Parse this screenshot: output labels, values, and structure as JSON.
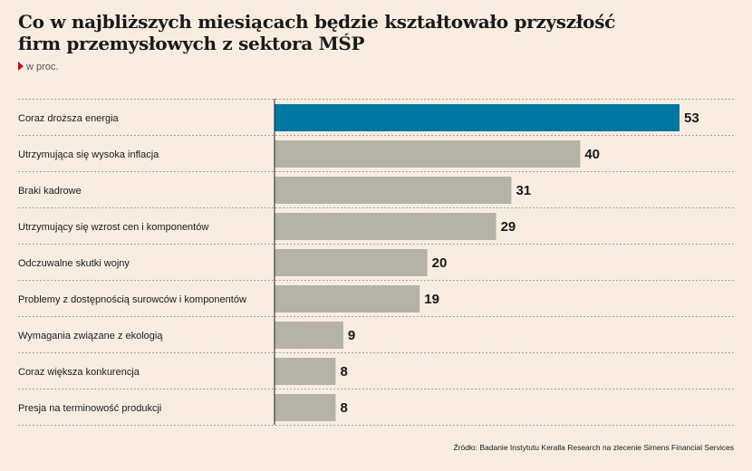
{
  "title_lines": [
    "Co w najbliższych miesiącach będzie kształtowało przyszłość",
    "firm przemysłowych z sektora MŚP"
  ],
  "unit": "w proc.",
  "source": "Źródło: Badanie Instytutu Keralla Research na zlecenie Simens Financial Services",
  "colors": {
    "background": "#f9ede2",
    "highlight": "#0077a0",
    "bar": "#b5b3a8",
    "marker": "#d0021b"
  },
  "chart_data": {
    "type": "bar",
    "orientation": "horizontal",
    "title": "Co w najbliższych miesiącach będzie kształtowało przyszłość firm przemysłowych z sektora MŚP",
    "unit": "w proc.",
    "xlim": [
      0,
      53
    ],
    "grid": false,
    "categories": [
      "Coraz droższa energia",
      "Utrzymująca się wysoka inflacja",
      "Braki kadrowe",
      "Utrzymujący się wzrost cen i komponentów",
      "Odczuwalne skutki wojny",
      "Problemy z dostępnością surowców i komponentów",
      "Wymagania związane z ekologią",
      "Coraz większa konkurencja",
      "Presja na terminowość produkcji"
    ],
    "values": [
      53,
      40,
      31,
      29,
      20,
      19,
      9,
      8,
      8
    ],
    "highlight_index": 0
  }
}
